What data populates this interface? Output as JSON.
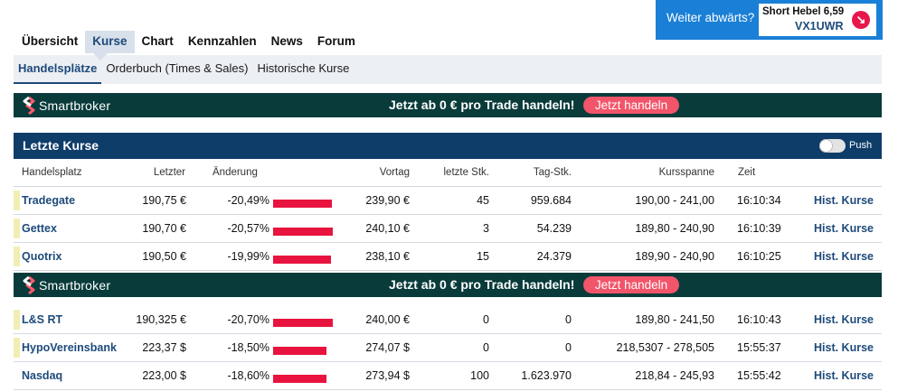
{
  "main_nav": {
    "tabs": [
      "Übersicht",
      "Kurse",
      "Chart",
      "Kennzahlen",
      "News",
      "Forum"
    ],
    "active": "Kurse"
  },
  "promo": {
    "text": "Weiter abwärts?",
    "product": "Short Hebel 6,59",
    "code": "VX1UWR",
    "arrow": "↘"
  },
  "sub_nav": {
    "tabs": [
      "Handelsplätze",
      "Orderbuch (Times & Sales)",
      "Historische Kurse"
    ],
    "active": "Handelsplätze"
  },
  "banner": {
    "logo_text": "Smartbroker",
    "text": "Jetzt ab 0 € pro Trade handeln!",
    "button": "Jetzt handeln"
  },
  "table": {
    "title": "Letzte Kurse",
    "push_label": "Push",
    "push_on": false,
    "columns": [
      "Handelsplatz",
      "Letzter",
      "Änderung",
      "Vortag",
      "letzte Stk.",
      "Tag-Stk.",
      "Kursspanne",
      "Zeit"
    ],
    "rows": [
      {
        "venue": "Tradegate",
        "last": "190,75 €",
        "change": "-20,49%",
        "change_value": -20.49,
        "prev": "239,90 €",
        "last_qty": "45",
        "day_qty": "959.684",
        "range": "190,00 - 241,00",
        "time": "16:10:34",
        "link": "Hist. Kurse",
        "marker": true
      },
      {
        "venue": "Gettex",
        "last": "190,70 €",
        "change": "-20,57%",
        "change_value": -20.57,
        "prev": "240,10 €",
        "last_qty": "3",
        "day_qty": "54.239",
        "range": "189,80 - 240,90",
        "time": "16:10:39",
        "link": "Hist. Kurse",
        "marker": true
      },
      {
        "venue": "Quotrix",
        "last": "190,50 €",
        "change": "-19,99%",
        "change_value": -19.99,
        "prev": "238,10 €",
        "last_qty": "15",
        "day_qty": "24.379",
        "range": "189,90 - 240,90",
        "time": "16:10:25",
        "link": "Hist. Kurse",
        "marker": true
      },
      {
        "venue": "L&S RT",
        "last": "190,325 €",
        "change": "-20,70%",
        "change_value": -20.7,
        "prev": "240,00 €",
        "last_qty": "0",
        "day_qty": "0",
        "range": "189,80 - 241,50",
        "time": "16:10:43",
        "link": "Hist. Kurse",
        "marker": true
      },
      {
        "venue": "HypoVereinsbank",
        "last": "223,37 $",
        "change": "-18,50%",
        "change_value": -18.5,
        "prev": "274,07 $",
        "last_qty": "0",
        "day_qty": "0",
        "range": "218,5307 - 278,505",
        "time": "15:55:37",
        "link": "Hist. Kurse",
        "marker": true
      },
      {
        "venue": "Nasdaq",
        "last": "223,00 $",
        "change": "-18,60%",
        "change_value": -18.6,
        "prev": "273,94 $",
        "last_qty": "100",
        "day_qty": "1.623.970",
        "range": "218,84 - 245,93",
        "time": "15:55:42",
        "link": "Hist. Kurse",
        "marker": false
      }
    ]
  },
  "colors": {
    "accent": "#1d4a7a",
    "header_bg": "#0f3d6a",
    "banner_bg": "#093b3b",
    "negative_bar": "#e8133f",
    "promo_bg": "#1a7fd6",
    "button": "#f2556a"
  }
}
